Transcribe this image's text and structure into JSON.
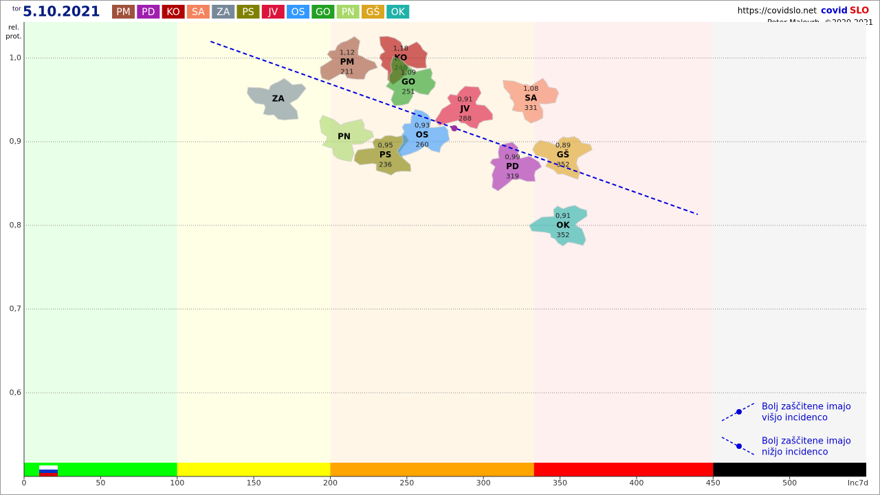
{
  "chart_data": {
    "type": "scatter",
    "day": "tor",
    "date": "5.10.2021",
    "url": "https://covidslo.net",
    "brand": "covid",
    "brand_accent": "SLO",
    "author": "Peter Malovrh, ©2020-2021",
    "y_label": [
      "rel.",
      "prot."
    ],
    "x_label": "Inc7d",
    "xlim": [
      0,
      550
    ],
    "ylim": [
      0.5,
      1.043
    ],
    "xticks": [
      0,
      50,
      100,
      150,
      200,
      250,
      300,
      350,
      400,
      450,
      500
    ],
    "yticks": [
      {
        "value": 0.6,
        "label": "0,6"
      },
      {
        "value": 0.7,
        "label": "0,7"
      },
      {
        "value": 0.8,
        "label": "0,8"
      },
      {
        "value": 0.9,
        "label": "0,9"
      },
      {
        "value": 1.0,
        "label": "1,0"
      }
    ],
    "grid": true,
    "zones": [
      {
        "from": 0,
        "to": 100,
        "color": "#00ff00",
        "background": "#e8ffe8"
      },
      {
        "from": 100,
        "to": 200,
        "color": "#ffff00",
        "background": "#ffffe6"
      },
      {
        "from": 200,
        "to": 333,
        "color": "#ffa500",
        "background": "#fff6e8"
      },
      {
        "from": 333,
        "to": 450,
        "color": "#ff0000",
        "background": "#fff0f0"
      },
      {
        "from": 450,
        "to": 550,
        "color": "#000000",
        "background": "#f5f5f5"
      }
    ],
    "series": [
      {
        "name": "PM",
        "color": "#a0523c",
        "x": [
          211
        ],
        "y": [
          0.995
        ],
        "values": [
          1.12
        ],
        "value_labels": [
          "1,12"
        ]
      },
      {
        "name": "PD",
        "color": "#a01fb0",
        "x": [
          319
        ],
        "y": [
          0.87
        ],
        "values": [
          0.99
        ],
        "value_labels": [
          "0,99"
        ]
      },
      {
        "name": "KO",
        "color": "#b00000",
        "x": [
          246
        ],
        "y": [
          1.0
        ],
        "values": [
          1.18
        ],
        "value_labels": [
          "1,18"
        ]
      },
      {
        "name": "SA",
        "color": "#f4845f",
        "x": [
          331
        ],
        "y": [
          0.952
        ],
        "values": [
          1.08
        ],
        "value_labels": [
          "1,08"
        ]
      },
      {
        "name": "ZA",
        "color": "#778899",
        "x": [
          166
        ],
        "y": [
          0.951
        ]
      },
      {
        "name": "PS",
        "color": "#808000",
        "x": [
          236
        ],
        "y": [
          0.884
        ],
        "values": [
          0.95
        ],
        "value_labels": [
          "0,95"
        ]
      },
      {
        "name": "JV",
        "color": "#dc143c",
        "x": [
          288
        ],
        "y": [
          0.939
        ],
        "values": [
          0.91
        ],
        "value_labels": [
          "0,91"
        ]
      },
      {
        "name": "OS",
        "color": "#3399ff",
        "x": [
          260
        ],
        "y": [
          0.908
        ],
        "values": [
          0.93
        ],
        "value_labels": [
          "0,93"
        ]
      },
      {
        "name": "GO",
        "color": "#22a022",
        "x": [
          251
        ],
        "y": [
          0.971
        ],
        "values": [
          1.09
        ],
        "value_labels": [
          "1,09"
        ]
      },
      {
        "name": "PN",
        "color": "#a8d86a",
        "x": [
          209
        ],
        "y": [
          0.906
        ]
      },
      {
        "name": "GŠ",
        "color": "#daa520",
        "x": [
          352
        ],
        "y": [
          0.884
        ],
        "values": [
          0.89
        ],
        "value_labels": [
          "0,89"
        ]
      },
      {
        "name": "OK",
        "color": "#20b2aa",
        "x": [
          352
        ],
        "y": [
          0.8
        ],
        "values": [
          0.91
        ],
        "value_labels": [
          "0,91"
        ]
      }
    ],
    "slovenia": {
      "x": 281,
      "y": 0.916,
      "color": "#9b2fa0"
    },
    "trend": {
      "x": [
        121.8,
        440
      ],
      "y": [
        1.0197,
        0.8131
      ],
      "color": "#0000dd"
    },
    "notes": [
      [
        "Bolj  zaščitene imajo",
        "višjo incidenco"
      ],
      [
        "Bolj  zaščitene imajo",
        "nižjo incidenco"
      ]
    ]
  }
}
